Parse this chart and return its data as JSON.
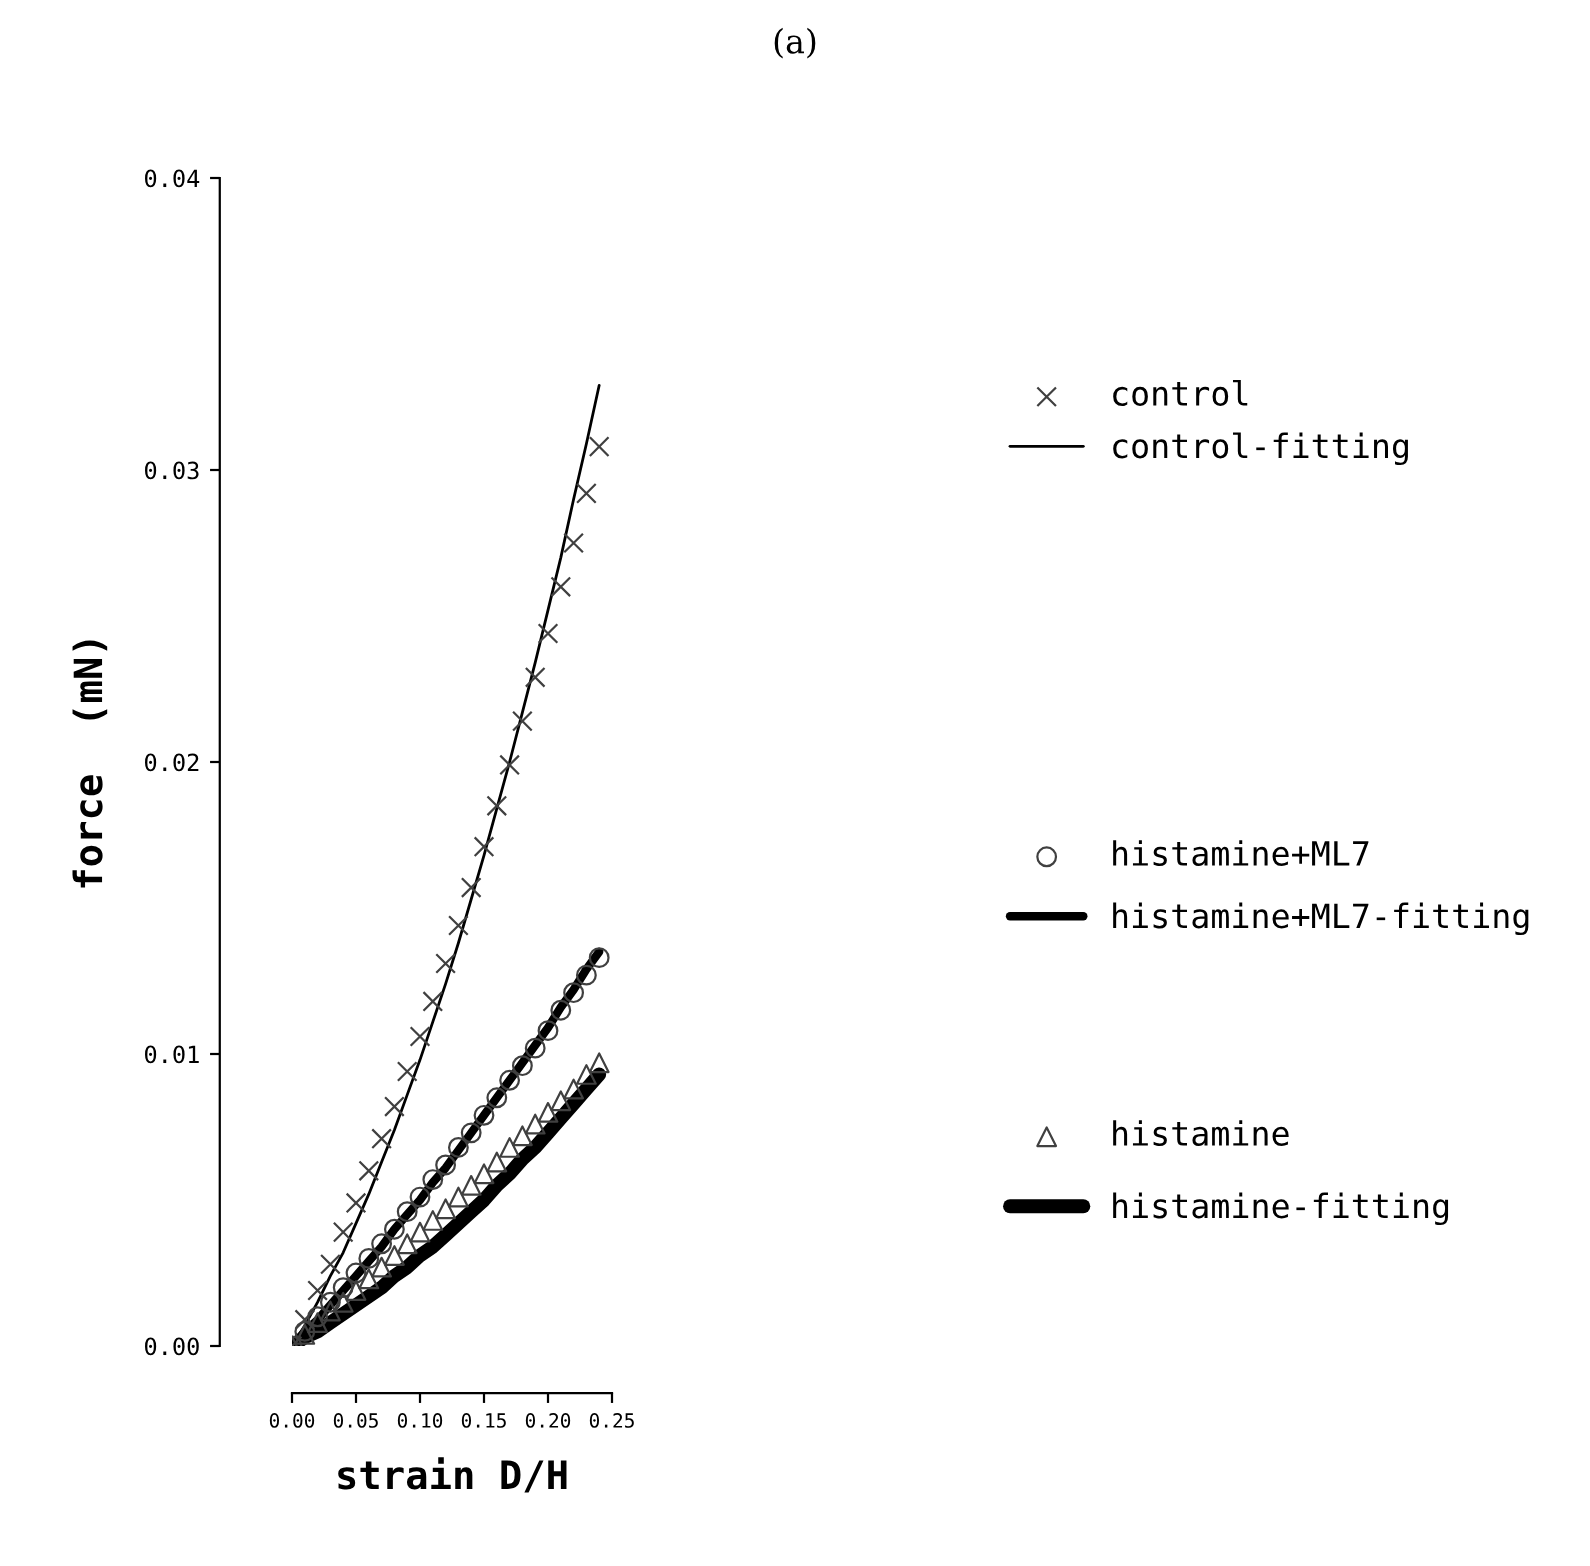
{
  "chart_data": {
    "type": "line",
    "title": "(a)",
    "xlabel": "strain D/H",
    "ylabel": "force  (mN)",
    "x": [
      0,
      0.01,
      0.02,
      0.03,
      0.04,
      0.05,
      0.06,
      0.07,
      0.08,
      0.09,
      0.1,
      0.11,
      0.12,
      0.13,
      0.14,
      0.15,
      0.16,
      0.17,
      0.18,
      0.19,
      0.2,
      0.21,
      0.22,
      0.23,
      0.24
    ],
    "xlim": [
      0,
      0.25
    ],
    "ylim": [
      0,
      0.04
    ],
    "xticks": [
      {
        "value": 0,
        "label": "0.00"
      },
      {
        "value": 0.05,
        "label": "0.05"
      },
      {
        "value": 0.1,
        "label": "0.10"
      },
      {
        "value": 0.15,
        "label": "0.15"
      },
      {
        "value": 0.2,
        "label": "0.20"
      },
      {
        "value": 0.25,
        "label": "0.25"
      }
    ],
    "yticks": [
      {
        "value": 0,
        "label": "0.00"
      },
      {
        "value": 0.01,
        "label": "0.01"
      },
      {
        "value": 0.02,
        "label": "0.02"
      },
      {
        "value": 0.03,
        "label": "0.03"
      },
      {
        "value": 0.04,
        "label": "0.04"
      }
    ],
    "grid": false,
    "legend": "right",
    "series": [
      {
        "name": "control",
        "type": "scatter",
        "marker": "cross",
        "color": "#404040",
        "values": [
          0,
          0.0009,
          0.0019,
          0.0028,
          0.0039,
          0.0049,
          0.006,
          0.0071,
          0.0082,
          0.0094,
          0.0106,
          0.0118,
          0.0131,
          0.0144,
          0.0157,
          0.0171,
          0.0185,
          0.0199,
          0.0214,
          0.0229,
          0.0244,
          0.026,
          0.0275,
          0.0292,
          0.0308
        ]
      },
      {
        "name": "control-fitting",
        "marker": "none",
        "line_style": "solid",
        "color": "#000000",
        "values": [
          0,
          0.0007,
          0.0015,
          0.0024,
          0.0032,
          0.0042,
          0.0052,
          0.0063,
          0.0074,
          0.0086,
          0.0098,
          0.0111,
          0.0124,
          0.0138,
          0.0153,
          0.0168,
          0.0184,
          0.02,
          0.0217,
          0.0234,
          0.0252,
          0.027,
          0.029,
          0.0309,
          0.0329
        ]
      },
      {
        "name": "histamine+ML7",
        "type": "scatter",
        "marker": "circle",
        "color": "#404040",
        "values": [
          0,
          0.0005,
          0.001,
          0.0015,
          0.002,
          0.0025,
          0.003,
          0.0035,
          0.004,
          0.0046,
          0.0051,
          0.0057,
          0.0062,
          0.0068,
          0.0073,
          0.0079,
          0.0085,
          0.0091,
          0.0096,
          0.0102,
          0.0108,
          0.0115,
          0.0121,
          0.0127,
          0.0133
        ]
      },
      {
        "name": "histamine+ML7-fitting",
        "marker": "none",
        "line_style": "solid",
        "color": "#000000",
        "values": [
          0,
          0.0005,
          0.0009,
          0.0014,
          0.0019,
          0.0024,
          0.0029,
          0.0034,
          0.004,
          0.0045,
          0.005,
          0.0056,
          0.0061,
          0.0067,
          0.0073,
          0.0079,
          0.0085,
          0.0091,
          0.0097,
          0.0103,
          0.0109,
          0.0116,
          0.0122,
          0.0129,
          0.0135
        ]
      },
      {
        "name": "histamine",
        "type": "scatter",
        "marker": "triangle",
        "color": "#404040",
        "values": [
          0,
          0.0004,
          0.0008,
          0.0012,
          0.0015,
          0.0019,
          0.0023,
          0.0027,
          0.0031,
          0.0035,
          0.0039,
          0.0043,
          0.0047,
          0.0051,
          0.0055,
          0.0059,
          0.0063,
          0.0068,
          0.0072,
          0.0076,
          0.008,
          0.0084,
          0.0088,
          0.0093,
          0.0097
        ]
      },
      {
        "name": "histamine-fitting",
        "marker": "none",
        "line_style": "solid",
        "color": "#000000",
        "values": [
          0,
          0.0003,
          0.0005,
          0.0008,
          0.0011,
          0.0014,
          0.0017,
          0.002,
          0.0024,
          0.0027,
          0.0031,
          0.0034,
          0.0038,
          0.0042,
          0.0046,
          0.005,
          0.0055,
          0.0059,
          0.0064,
          0.0068,
          0.0073,
          0.0078,
          0.0083,
          0.0088,
          0.0093
        ]
      }
    ]
  }
}
